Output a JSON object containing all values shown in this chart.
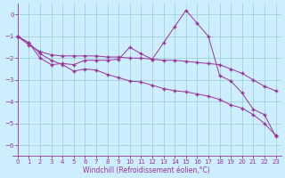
{
  "xlabel": "Windchill (Refroidissement éolien,°C)",
  "ylabel": "",
  "bg_color": "#cceeff",
  "grid_color": "#99cccc",
  "line_color": "#993399",
  "xlim": [
    -0.5,
    23.5
  ],
  "ylim": [
    -6.5,
    0.5
  ],
  "yticks": [
    0,
    -1,
    -2,
    -3,
    -4,
    -5,
    -6
  ],
  "xticks": [
    0,
    1,
    2,
    3,
    4,
    5,
    6,
    7,
    8,
    9,
    10,
    11,
    12,
    13,
    14,
    15,
    16,
    17,
    18,
    19,
    20,
    21,
    22,
    23
  ],
  "series1_x": [
    0,
    1,
    2,
    3,
    4,
    5,
    6,
    7,
    8,
    9,
    10,
    11,
    12,
    13,
    14,
    15,
    16,
    17,
    18,
    19,
    20,
    21,
    22,
    23
  ],
  "series1_y": [
    -1.0,
    -1.4,
    -1.7,
    -1.85,
    -1.9,
    -1.9,
    -1.9,
    -1.9,
    -1.95,
    -1.95,
    -2.0,
    -2.0,
    -2.05,
    -2.1,
    -2.1,
    -2.15,
    -2.2,
    -2.25,
    -2.3,
    -2.5,
    -2.7,
    -3.0,
    -3.3,
    -3.5
  ],
  "series2_x": [
    0,
    1,
    2,
    3,
    4,
    5,
    6,
    7,
    8,
    9,
    10,
    11,
    12,
    13,
    14,
    15,
    16,
    17,
    18,
    19,
    20,
    21,
    22,
    23
  ],
  "series2_y": [
    -1.0,
    -1.3,
    -2.0,
    -2.3,
    -2.25,
    -2.3,
    -2.1,
    -2.1,
    -2.1,
    -2.05,
    -1.5,
    -1.8,
    -2.05,
    -1.3,
    -0.55,
    0.2,
    -0.4,
    -1.0,
    -2.8,
    -3.05,
    -3.6,
    -4.35,
    -4.6,
    -5.6
  ],
  "series3_x": [
    0,
    1,
    2,
    3,
    4,
    5,
    6,
    7,
    8,
    9,
    10,
    11,
    12,
    13,
    14,
    15,
    16,
    17,
    18,
    19,
    20,
    21,
    22,
    23
  ],
  "series3_y": [
    -1.0,
    -1.3,
    -1.8,
    -2.1,
    -2.3,
    -2.6,
    -2.5,
    -2.55,
    -2.75,
    -2.9,
    -3.05,
    -3.1,
    -3.25,
    -3.4,
    -3.5,
    -3.55,
    -3.65,
    -3.75,
    -3.9,
    -4.15,
    -4.3,
    -4.6,
    -5.0,
    -5.55
  ]
}
